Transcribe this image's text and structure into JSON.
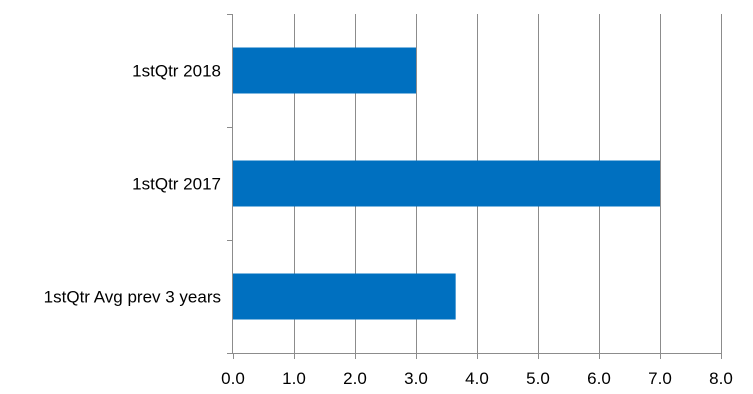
{
  "chart_data": {
    "type": "bar",
    "orientation": "horizontal",
    "categories": [
      "1stQtr Avg prev 3 years",
      "1stQtr 2017",
      "1stQtr 2018"
    ],
    "values": [
      3.65,
      7.0,
      3.0
    ],
    "x_ticks": [
      "0.0",
      "1.0",
      "2.0",
      "3.0",
      "4.0",
      "5.0",
      "6.0",
      "7.0",
      "8.0"
    ],
    "xlim": [
      0,
      8
    ],
    "grid": "vertical",
    "legend": "none",
    "bar_color": "#0070C0",
    "title": "",
    "xlabel": "",
    "ylabel": ""
  }
}
